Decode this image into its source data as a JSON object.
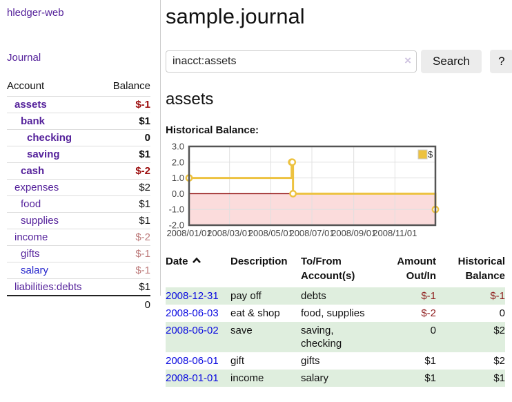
{
  "sidebar": {
    "app_title": "hledger-web",
    "journal_link": "Journal",
    "accounts_header": {
      "account": "Account",
      "balance": "Balance"
    },
    "accounts": [
      {
        "name": "assets",
        "depth": 1,
        "balance": "$-1",
        "bold": true,
        "neg": "strong"
      },
      {
        "name": "bank",
        "depth": 2,
        "balance": "$1",
        "bold": true,
        "neg": ""
      },
      {
        "name": "checking",
        "depth": 3,
        "balance": "0",
        "bold": true,
        "neg": ""
      },
      {
        "name": "saving",
        "depth": 3,
        "balance": "$1",
        "bold": true,
        "neg": ""
      },
      {
        "name": "cash",
        "depth": 2,
        "balance": "$-2",
        "bold": true,
        "neg": "strong"
      },
      {
        "name": "expenses",
        "depth": 1,
        "balance": "$2",
        "bold": false,
        "neg": ""
      },
      {
        "name": "food",
        "depth": 2,
        "balance": "$1",
        "bold": false,
        "neg": ""
      },
      {
        "name": "supplies",
        "depth": 2,
        "balance": "$1",
        "bold": false,
        "neg": ""
      },
      {
        "name": "income",
        "depth": 1,
        "balance": "$-2",
        "bold": false,
        "neg": "muted"
      },
      {
        "name": "gifts",
        "depth": 2,
        "balance": "$-1",
        "bold": false,
        "neg": "muted"
      },
      {
        "name": "salary",
        "depth": 2,
        "balance": "$-1",
        "bold": false,
        "neg": "muted",
        "link_color": "blue"
      },
      {
        "name": "liabilities:debts",
        "depth": 1,
        "balance": "$1",
        "bold": false,
        "neg": ""
      }
    ],
    "total": "0"
  },
  "main": {
    "title": "sample.journal",
    "search": {
      "value": "inacct:assets",
      "clear_icon": "×",
      "button_label": "Search",
      "help_label": "?"
    },
    "account_heading": "assets",
    "chart_label": "Historical Balance:"
  },
  "chart_data": {
    "type": "line",
    "title": "Historical Balance",
    "legend": "$",
    "legend_position": "top-right",
    "grid": true,
    "ylim": [
      -2,
      3
    ],
    "y_ticks": [
      3.0,
      2.0,
      1.0,
      0.0,
      -1.0,
      -2.0
    ],
    "x_range": [
      "2008-01-01",
      "2008-12-31"
    ],
    "x_ticks": [
      "2008/01/01",
      "2008/03/01",
      "2008/05/01",
      "2008/07/01",
      "2008/09/01",
      "2008/11/01"
    ],
    "series": [
      {
        "name": "$",
        "color": "#edc240",
        "step": true,
        "points": [
          [
            "2008-01-01",
            1
          ],
          [
            "2008-06-01",
            2
          ],
          [
            "2008-06-02",
            2
          ],
          [
            "2008-06-03",
            0
          ],
          [
            "2008-12-31",
            -1
          ]
        ]
      }
    ],
    "negative_fill": "#fbdcdc",
    "zero_line_color": "#8b0000",
    "border_color": "#545454",
    "grid_color": "#e0e0e0"
  },
  "register": {
    "columns": [
      {
        "lines": [
          "Date"
        ],
        "align": "left",
        "sorted": "asc"
      },
      {
        "lines": [
          "Description"
        ],
        "align": "left"
      },
      {
        "lines": [
          "To/From",
          "Account(s)"
        ],
        "align": "left"
      },
      {
        "lines": [
          "Amount",
          "Out/In"
        ],
        "align": "right"
      },
      {
        "lines": [
          "Historical",
          "Balance"
        ],
        "align": "right"
      }
    ],
    "rows": [
      {
        "date": "2008-12-31",
        "description": "pay off",
        "accounts": "debts",
        "amount": "$-1",
        "amount_neg": true,
        "balance": "$-1",
        "balance_neg": true
      },
      {
        "date": "2008-06-03",
        "description": "eat & shop",
        "accounts": "food, supplies",
        "amount": "$-2",
        "amount_neg": true,
        "balance": "0",
        "balance_neg": false
      },
      {
        "date": "2008-06-02",
        "description": "save",
        "accounts": "saving, checking",
        "amount": "0",
        "amount_neg": false,
        "balance": "$2",
        "balance_neg": false
      },
      {
        "date": "2008-06-01",
        "description": "gift",
        "accounts": "gifts",
        "amount": "$1",
        "amount_neg": false,
        "balance": "$2",
        "balance_neg": false
      },
      {
        "date": "2008-01-01",
        "description": "income",
        "accounts": "salary",
        "amount": "$1",
        "amount_neg": false,
        "balance": "$1",
        "balance_neg": false
      }
    ]
  }
}
